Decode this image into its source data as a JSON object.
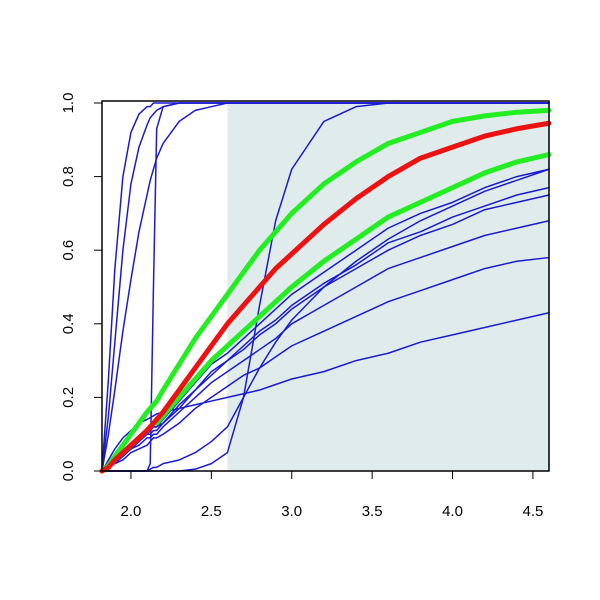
{
  "chart_data": {
    "type": "line",
    "x": [
      1.82,
      1.86,
      1.9,
      1.95,
      2.0,
      2.05,
      2.1,
      2.12,
      2.14,
      2.16,
      2.2,
      2.3,
      2.4,
      2.5,
      2.6,
      2.7,
      2.8,
      2.9,
      3.0,
      3.2,
      3.4,
      3.6,
      3.8,
      4.0,
      4.2,
      4.4,
      4.6
    ],
    "xlim": [
      1.82,
      4.6
    ],
    "ylim": [
      0,
      1
    ],
    "xticks": [
      {
        "value": 2.0,
        "label": "2.0"
      },
      2.5,
      {
        "value": 3.0,
        "label": "3.0"
      },
      3.5,
      {
        "value": 4.0,
        "label": "4.0"
      },
      4.5
    ],
    "yticks": [
      {
        "value": 0,
        "label": "0.0"
      },
      0.2,
      0.4,
      0.6,
      0.8,
      {
        "value": 1,
        "label": "1.0"
      }
    ],
    "shade": {
      "x": [
        2.6,
        4.6
      ],
      "color": "#e0ecec"
    },
    "series": [
      {
        "color": "#1a1ad6",
        "width": 1.5,
        "values": [
          0,
          0.25,
          0.55,
          0.8,
          0.92,
          0.97,
          0.99,
          0.99,
          1,
          1,
          1,
          1,
          1,
          1,
          1,
          1,
          1,
          1,
          1,
          1,
          1,
          1,
          1,
          1,
          1,
          1,
          1
        ]
      },
      {
        "color": "#1a1ad6",
        "width": 1.5,
        "values": [
          0,
          0.15,
          0.35,
          0.6,
          0.78,
          0.88,
          0.94,
          0.96,
          0.97,
          0.98,
          0.99,
          1,
          1,
          1,
          1,
          1,
          1,
          1,
          1,
          1,
          1,
          1,
          1,
          1,
          1,
          1,
          1
        ]
      },
      {
        "color": "#1a1ad6",
        "width": 1.5,
        "values": [
          0,
          0,
          0,
          0,
          0,
          0,
          0,
          0.02,
          0.5,
          0.93,
          0.99,
          1,
          1,
          1,
          1,
          1,
          1,
          1,
          1,
          1,
          1,
          1,
          1,
          1,
          1,
          1,
          1
        ]
      },
      {
        "color": "#1a1ad6",
        "width": 1.5,
        "values": [
          0,
          0.1,
          0.22,
          0.38,
          0.52,
          0.65,
          0.75,
          0.79,
          0.82,
          0.85,
          0.89,
          0.95,
          0.98,
          0.99,
          1,
          1,
          1,
          1,
          1,
          1,
          1,
          1,
          1,
          1,
          1,
          1,
          1
        ]
      },
      {
        "color": "#1a1ad6",
        "width": 1.5,
        "values": [
          0,
          0,
          0,
          0,
          0,
          0,
          0,
          0,
          0,
          0,
          0,
          0,
          0.005,
          0.02,
          0.05,
          0.2,
          0.45,
          0.68,
          0.82,
          0.95,
          0.99,
          1,
          1,
          1,
          1,
          1,
          1
        ]
      },
      {
        "color": "#1a1ad6",
        "width": 1.5,
        "values": [
          0,
          0,
          0,
          0,
          0,
          0,
          0,
          0.005,
          0.01,
          0.01,
          0.02,
          0.03,
          0.05,
          0.08,
          0.12,
          0.2,
          0.28,
          0.35,
          0.41,
          0.5,
          0.57,
          0.63,
          0.68,
          0.72,
          0.76,
          0.79,
          0.82
        ]
      },
      {
        "color": "#1a1ad6",
        "width": 1.5,
        "values": [
          0,
          0.03,
          0.06,
          0.09,
          0.11,
          0.13,
          0.14,
          0.145,
          0.15,
          0.155,
          0.16,
          0.17,
          0.18,
          0.19,
          0.2,
          0.21,
          0.22,
          0.235,
          0.25,
          0.27,
          0.3,
          0.32,
          0.35,
          0.37,
          0.39,
          0.41,
          0.43
        ]
      },
      {
        "color": "#1a1ad6",
        "width": 1.5,
        "values": [
          0,
          0.01,
          0.02,
          0.03,
          0.05,
          0.06,
          0.07,
          0.08,
          0.09,
          0.09,
          0.1,
          0.13,
          0.17,
          0.2,
          0.23,
          0.26,
          0.28,
          0.31,
          0.34,
          0.38,
          0.42,
          0.46,
          0.49,
          0.52,
          0.55,
          0.57,
          0.58
        ]
      },
      {
        "color": "#1a1ad6",
        "width": 1.5,
        "values": [
          0,
          0.01,
          0.02,
          0.04,
          0.06,
          0.07,
          0.09,
          0.09,
          0.1,
          0.1,
          0.12,
          0.16,
          0.2,
          0.24,
          0.27,
          0.3,
          0.33,
          0.36,
          0.4,
          0.45,
          0.5,
          0.55,
          0.58,
          0.61,
          0.64,
          0.66,
          0.68
        ]
      },
      {
        "color": "#1a1ad6",
        "width": 1.5,
        "values": [
          0,
          0.01,
          0.03,
          0.04,
          0.06,
          0.08,
          0.1,
          0.1,
          0.11,
          0.11,
          0.13,
          0.17,
          0.22,
          0.26,
          0.3,
          0.33,
          0.37,
          0.4,
          0.44,
          0.5,
          0.55,
          0.6,
          0.64,
          0.67,
          0.71,
          0.73,
          0.75
        ]
      },
      {
        "color": "#1a1ad6",
        "width": 1.5,
        "values": [
          0,
          0.01,
          0.03,
          0.04,
          0.06,
          0.08,
          0.1,
          0.11,
          0.12,
          0.12,
          0.13,
          0.18,
          0.22,
          0.27,
          0.3,
          0.34,
          0.38,
          0.41,
          0.45,
          0.51,
          0.56,
          0.62,
          0.65,
          0.69,
          0.72,
          0.75,
          0.77
        ]
      },
      {
        "color": "#1a1ad6",
        "width": 1.5,
        "values": [
          0,
          0.01,
          0.03,
          0.05,
          0.07,
          0.09,
          0.1,
          0.11,
          0.12,
          0.12,
          0.14,
          0.19,
          0.24,
          0.29,
          0.32,
          0.36,
          0.4,
          0.44,
          0.48,
          0.54,
          0.6,
          0.66,
          0.7,
          0.73,
          0.77,
          0.8,
          0.82
        ]
      },
      {
        "color": "#22ee22",
        "width": 5,
        "values": [
          0,
          0.01,
          0.03,
          0.05,
          0.07,
          0.09,
          0.11,
          0.12,
          0.13,
          0.13,
          0.15,
          0.2,
          0.25,
          0.3,
          0.34,
          0.38,
          0.42,
          0.46,
          0.5,
          0.57,
          0.63,
          0.69,
          0.73,
          0.77,
          0.81,
          0.84,
          0.86
        ]
      },
      {
        "color": "#22ee22",
        "width": 5,
        "values": [
          0,
          0.015,
          0.04,
          0.07,
          0.1,
          0.13,
          0.16,
          0.17,
          0.18,
          0.19,
          0.22,
          0.29,
          0.36,
          0.42,
          0.48,
          0.54,
          0.6,
          0.65,
          0.7,
          0.78,
          0.84,
          0.89,
          0.92,
          0.95,
          0.965,
          0.975,
          0.98
        ]
      },
      {
        "color": "#ee1111",
        "width": 5,
        "values": [
          0,
          0.01,
          0.03,
          0.05,
          0.07,
          0.09,
          0.11,
          0.12,
          0.13,
          0.14,
          0.16,
          0.22,
          0.28,
          0.34,
          0.4,
          0.45,
          0.5,
          0.55,
          0.59,
          0.67,
          0.74,
          0.8,
          0.85,
          0.88,
          0.91,
          0.93,
          0.945
        ]
      }
    ]
  }
}
